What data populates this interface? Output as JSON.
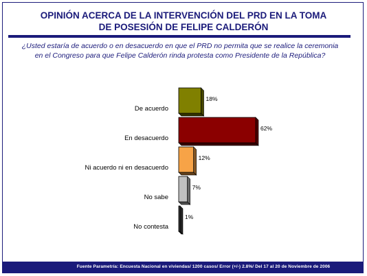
{
  "title": {
    "line1": "OPINIÓN ACERCA DE LA INTERVENCIÓN DEL PRD EN LA TOMA",
    "line2": "DE POSESIÓN DE FELIPE CALDERÓN"
  },
  "question": {
    "line1": "¿Usted estaría de acuerdo o en desacuerdo en que el PRD no permita que se realice la ceremonia",
    "line2": "en el Congreso para que Felipe Calderón rinda protesta como Presidente de la República?"
  },
  "footer": {
    "text": "Fuente Parametría: Encuesta Nacional en viviendas/ 1200 casos/ Error (+/-) 2.8%/ Del 17 al 20 de Noviembre de 2006"
  },
  "colors": {
    "title": "#1a1a7a",
    "frame": "#1a1a7a"
  },
  "chart_data": {
    "type": "bar",
    "orientation": "horizontal",
    "categories": [
      "De acuerdo",
      "En desacuerdo",
      "Ni acuerdo ni en desacuerdo",
      "No sabe",
      "No contesta"
    ],
    "values": [
      18,
      62,
      12,
      7,
      1
    ],
    "value_labels": [
      "18%",
      "62%",
      "12%",
      "7%",
      "1%"
    ],
    "colors": [
      "#808000",
      "#8b0000",
      "#f7a347",
      "#c0c0c0",
      "#404040"
    ],
    "unit": "%",
    "xlim": [
      0,
      62
    ],
    "grid": false,
    "legend": "none",
    "bar_style": "3d"
  }
}
